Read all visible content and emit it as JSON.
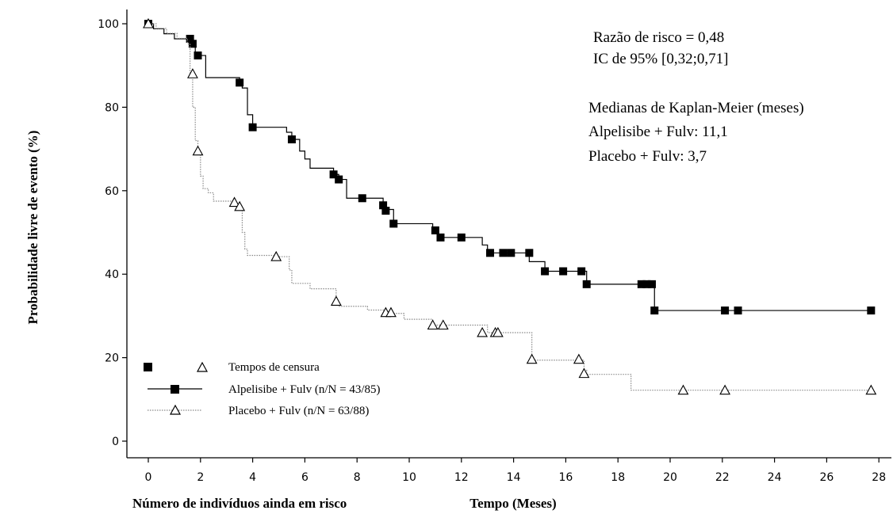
{
  "chart_data": {
    "type": "line",
    "title": "",
    "xlabel": "Tempo (Meses)",
    "ylabel": "Probabilidade livre de evento (%)",
    "xlim": [
      0,
      28
    ],
    "ylim": [
      0,
      100
    ],
    "x_ticks": [
      0,
      2,
      4,
      6,
      8,
      10,
      12,
      14,
      16,
      18,
      20,
      22,
      24,
      26,
      28
    ],
    "y_ticks": [
      0,
      20,
      40,
      60,
      80,
      100
    ],
    "grid": false,
    "risk_table_label": "Número de indivíduos ainda em risco",
    "annotations": [
      "Razão de risco = 0,48",
      "IC de 95% [0,32;0,71]",
      "Medianas de Kaplan-Meier (meses)",
      "Alpelisibe + Fulv: 11,1",
      "Placebo + Fulv: 3,7"
    ],
    "legend": {
      "position": "bottom-left",
      "censor_label": "Tempos de censura",
      "entries": [
        "Alpelisibe + Fulv (n/N = 43/85)",
        "Placebo + Fulv (n/N = 63/88)"
      ]
    },
    "series": [
      {
        "name": "Alpelisibe + Fulv (n/N = 43/85)",
        "color": "#000000",
        "marker": "filled-square",
        "line": "solid",
        "steps": [
          [
            0,
            100
          ],
          [
            0.2,
            98.8
          ],
          [
            0.6,
            97.6
          ],
          [
            1.0,
            96.4
          ],
          [
            1.6,
            95.2
          ],
          [
            1.8,
            92.4
          ],
          [
            2.2,
            87.1
          ],
          [
            3.5,
            85.9
          ],
          [
            3.6,
            84.6
          ],
          [
            3.8,
            78.2
          ],
          [
            4.0,
            75.2
          ],
          [
            5.3,
            74.0
          ],
          [
            5.5,
            72.3
          ],
          [
            5.8,
            69.5
          ],
          [
            6.0,
            67.6
          ],
          [
            6.2,
            65.4
          ],
          [
            7.1,
            63.9
          ],
          [
            7.3,
            62.7
          ],
          [
            7.6,
            58.2
          ],
          [
            8.5,
            58.2
          ],
          [
            9.0,
            55.5
          ],
          [
            9.4,
            52.1
          ],
          [
            10.9,
            50.5
          ],
          [
            11.1,
            48.8
          ],
          [
            12.8,
            47.0
          ],
          [
            13.0,
            45.1
          ],
          [
            14.6,
            43.0
          ],
          [
            15.2,
            40.7
          ],
          [
            16.6,
            40.7
          ],
          [
            16.8,
            37.6
          ],
          [
            19.4,
            31.3
          ],
          [
            27.8,
            31.3
          ]
        ],
        "censored": [
          [
            0,
            100
          ],
          [
            1.6,
            96.4
          ],
          [
            1.7,
            95.2
          ],
          [
            1.9,
            92.4
          ],
          [
            3.5,
            85.9
          ],
          [
            4.0,
            75.2
          ],
          [
            5.5,
            72.3
          ],
          [
            7.1,
            63.9
          ],
          [
            7.3,
            62.7
          ],
          [
            8.2,
            58.2
          ],
          [
            9.0,
            56.5
          ],
          [
            9.1,
            55.2
          ],
          [
            9.4,
            52.1
          ],
          [
            11.0,
            50.5
          ],
          [
            11.2,
            48.8
          ],
          [
            12.0,
            48.8
          ],
          [
            13.1,
            45.1
          ],
          [
            13.6,
            45.1
          ],
          [
            13.9,
            45.1
          ],
          [
            14.6,
            45.1
          ],
          [
            15.2,
            40.7
          ],
          [
            15.9,
            40.7
          ],
          [
            16.6,
            40.7
          ],
          [
            16.8,
            37.6
          ],
          [
            18.9,
            37.6
          ],
          [
            19.1,
            37.6
          ],
          [
            19.3,
            37.6
          ],
          [
            19.4,
            31.3
          ],
          [
            22.1,
            31.3
          ],
          [
            22.6,
            31.3
          ],
          [
            27.7,
            31.3
          ]
        ]
      },
      {
        "name": "Placebo + Fulv (n/N = 63/88)",
        "color": "#8a8a8a",
        "marker": "open-triangle",
        "line": "dotted",
        "steps": [
          [
            0,
            100
          ],
          [
            0.3,
            98.9
          ],
          [
            0.7,
            97.7
          ],
          [
            1.1,
            96.5
          ],
          [
            1.5,
            95.2
          ],
          [
            1.6,
            88.0
          ],
          [
            1.7,
            80.0
          ],
          [
            1.8,
            72.0
          ],
          [
            1.9,
            69.5
          ],
          [
            2.0,
            63.5
          ],
          [
            2.1,
            60.5
          ],
          [
            2.3,
            59.5
          ],
          [
            2.5,
            57.5
          ],
          [
            3.3,
            56.8
          ],
          [
            3.5,
            55.8
          ],
          [
            3.6,
            50.0
          ],
          [
            3.7,
            46.0
          ],
          [
            3.8,
            44.5
          ],
          [
            4.9,
            44.2
          ],
          [
            5.4,
            41.0
          ],
          [
            5.5,
            37.8
          ],
          [
            6.2,
            36.5
          ],
          [
            7.2,
            33.5
          ],
          [
            7.3,
            32.3
          ],
          [
            8.4,
            31.4
          ],
          [
            9.1,
            30.6
          ],
          [
            9.8,
            29.2
          ],
          [
            10.9,
            27.8
          ],
          [
            12.8,
            27.8
          ],
          [
            13.0,
            26.0
          ],
          [
            14.7,
            19.4
          ],
          [
            16.7,
            17.0
          ],
          [
            16.8,
            16.0
          ],
          [
            18.5,
            12.2
          ],
          [
            27.8,
            12.2
          ]
        ],
        "censored": [
          [
            0,
            100
          ],
          [
            1.7,
            88.0
          ],
          [
            1.9,
            69.5
          ],
          [
            3.3,
            57.2
          ],
          [
            3.5,
            56.2
          ],
          [
            4.9,
            44.2
          ],
          [
            7.2,
            33.5
          ],
          [
            9.1,
            30.8
          ],
          [
            9.3,
            30.8
          ],
          [
            10.9,
            27.8
          ],
          [
            11.3,
            27.8
          ],
          [
            12.8,
            26.0
          ],
          [
            13.3,
            26.0
          ],
          [
            13.4,
            26.0
          ],
          [
            14.7,
            19.6
          ],
          [
            16.5,
            19.6
          ],
          [
            16.7,
            16.2
          ],
          [
            20.5,
            12.2
          ],
          [
            22.1,
            12.2
          ],
          [
            27.7,
            12.2
          ]
        ]
      }
    ]
  }
}
